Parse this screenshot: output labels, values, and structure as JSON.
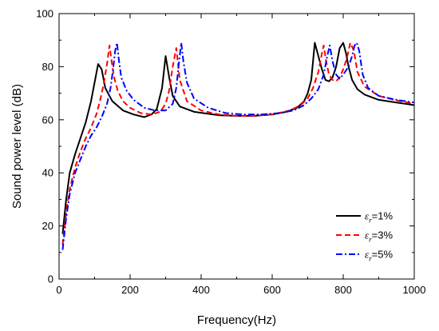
{
  "chart_data": {
    "type": "line",
    "title": "",
    "xlabel": "Frequency(Hz)",
    "ylabel": "Sound power level (dB)",
    "xlim": [
      0,
      1000
    ],
    "ylim": [
      0,
      100
    ],
    "xticks": [
      0,
      200,
      400,
      600,
      800,
      1000
    ],
    "yticks": [
      0,
      20,
      40,
      60,
      80,
      100
    ],
    "grid": false,
    "legend_position": "bottom-right",
    "series": [
      {
        "name": "εr=1%",
        "name_symbol": "ε",
        "name_sub": "r",
        "name_rest": "=1%",
        "color": "#000000",
        "dash": "solid",
        "x": [
          10,
          20,
          30,
          45,
          60,
          75,
          90,
          100,
          110,
          120,
          130,
          150,
          180,
          210,
          240,
          260,
          275,
          290,
          300,
          310,
          320,
          340,
          380,
          450,
          500,
          550,
          600,
          640,
          670,
          690,
          700,
          710,
          720,
          730,
          740,
          750,
          760,
          770,
          780,
          790,
          800,
          808,
          815,
          825,
          840,
          860,
          900,
          950,
          1000
        ],
        "y": [
          17,
          30,
          40,
          47,
          53,
          59,
          67,
          74,
          81,
          79,
          72,
          67,
          63.5,
          62,
          61,
          62,
          64,
          72,
          84,
          76,
          69,
          65,
          63,
          61.7,
          61.5,
          61.5,
          62,
          63,
          64.5,
          67,
          70,
          75,
          89,
          84,
          79,
          75,
          74.5,
          76,
          80,
          87,
          89,
          85,
          80,
          75,
          71.5,
          69.5,
          67.5,
          66.5,
          65.5
        ]
      },
      {
        "name": "εr=3%",
        "name_symbol": "ε",
        "name_sub": "r",
        "name_rest": "=3%",
        "color": "#ff0000",
        "dash": "dashed",
        "x": [
          10,
          20,
          30,
          45,
          60,
          75,
          90,
          105,
          115,
          125,
          135,
          142,
          148,
          155,
          165,
          180,
          200,
          230,
          260,
          285,
          300,
          310,
          320,
          330,
          340,
          360,
          400,
          450,
          500,
          550,
          600,
          650,
          680,
          700,
          715,
          730,
          740,
          745,
          752,
          760,
          770,
          780,
          790,
          800,
          810,
          820,
          830,
          840,
          860,
          900,
          950,
          1000
        ],
        "y": [
          13,
          25,
          34,
          42,
          48,
          53,
          57,
          62,
          67,
          73,
          81,
          88,
          82,
          76,
          71,
          67,
          64.5,
          62.5,
          62,
          63,
          66,
          71,
          80,
          87,
          75,
          67,
          63.5,
          62,
          61.5,
          61.5,
          62,
          63.5,
          65.5,
          68,
          72,
          78,
          85,
          88,
          82,
          77,
          75,
          74.5,
          76,
          79,
          83,
          89,
          86,
          78,
          72.5,
          69,
          67.3,
          66
        ],
        "_": null
      },
      {
        "name": "εr=5%",
        "name_symbol": "ε",
        "name_sub": "r",
        "name_rest": "=5%",
        "color": "#0000ff",
        "dash": "dashdot",
        "x": [
          10,
          20,
          30,
          45,
          60,
          75,
          90,
          105,
          120,
          135,
          145,
          152,
          158,
          163,
          168,
          175,
          190,
          210,
          240,
          270,
          300,
          320,
          330,
          338,
          344,
          350,
          360,
          380,
          420,
          470,
          520,
          570,
          620,
          660,
          690,
          710,
          730,
          745,
          755,
          762,
          770,
          780,
          790,
          800,
          815,
          825,
          832,
          838,
          845,
          855,
          870,
          900,
          950,
          1000
        ],
        "y": [
          11,
          23,
          32,
          40,
          45,
          50,
          54,
          57,
          61,
          66,
          72,
          79,
          86,
          89,
          83,
          76,
          71,
          67.5,
          64.5,
          63.5,
          63.5,
          66,
          72,
          82,
          89,
          82,
          74,
          68,
          64.5,
          62.5,
          62,
          62,
          62.5,
          63.5,
          65.5,
          68,
          71.5,
          77,
          84,
          88,
          82,
          77,
          75.5,
          77,
          80,
          84,
          88,
          89,
          86,
          77,
          72,
          69,
          67.5,
          66.5
        ]
      }
    ]
  }
}
